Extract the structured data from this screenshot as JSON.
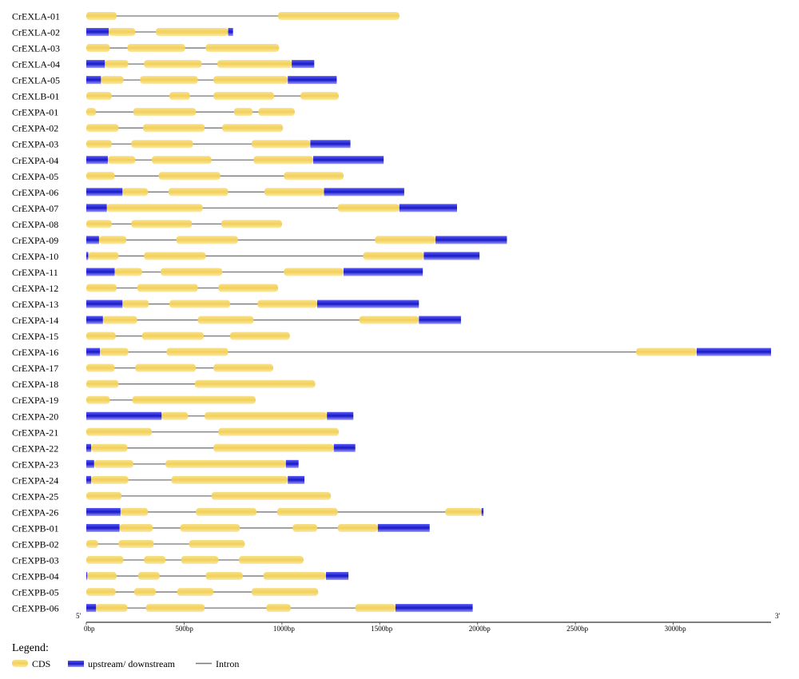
{
  "chart_data": {
    "type": "gene_structure",
    "x_unit": "bp",
    "x_range": [
      0,
      3500
    ],
    "x_ticks": [
      {
        "value": 0,
        "label": "0bp"
      },
      {
        "value": 500,
        "label": "500bp"
      },
      {
        "value": 1000,
        "label": "1000bp"
      },
      {
        "value": 1500,
        "label": "1500bp"
      },
      {
        "value": 2000,
        "label": "2000bp"
      },
      {
        "value": 2500,
        "label": "2500bp"
      },
      {
        "value": 3000,
        "label": "3000bp"
      }
    ],
    "five_prime_label": "5'",
    "three_prime_label": "3'",
    "colors": {
      "cds": "#f2d563",
      "utr": "#2a2ad6",
      "intron": "#777777"
    },
    "genes": [
      {
        "name": "CrEXLA-01",
        "length": 1600,
        "cds": [
          [
            0,
            155
          ],
          [
            980,
            1600
          ]
        ],
        "utr": []
      },
      {
        "name": "CrEXLA-02",
        "length": 750,
        "cds": [
          [
            115,
            250
          ],
          [
            355,
            725
          ]
        ],
        "utr": [
          [
            0,
            115
          ],
          [
            725,
            750
          ]
        ]
      },
      {
        "name": "CrEXLA-03",
        "length": 985,
        "cds": [
          [
            0,
            120
          ],
          [
            210,
            505
          ],
          [
            610,
            985
          ]
        ],
        "utr": []
      },
      {
        "name": "CrEXLA-04",
        "length": 1165,
        "cds": [
          [
            95,
            215
          ],
          [
            295,
            590
          ],
          [
            670,
            1050
          ]
        ],
        "utr": [
          [
            0,
            95
          ],
          [
            1050,
            1165
          ]
        ]
      },
      {
        "name": "CrEXLA-05",
        "length": 1280,
        "cds": [
          [
            75,
            190
          ],
          [
            275,
            570
          ],
          [
            650,
            1030
          ]
        ],
        "utr": [
          [
            0,
            75
          ],
          [
            1030,
            1280
          ]
        ]
      },
      {
        "name": "CrEXLB-01",
        "length": 1290,
        "cds": [
          [
            0,
            130
          ],
          [
            425,
            530
          ],
          [
            650,
            960
          ],
          [
            1095,
            1290
          ]
        ],
        "utr": []
      },
      {
        "name": "CrEXPA-01",
        "length": 1065,
        "cds": [
          [
            0,
            50
          ],
          [
            240,
            560
          ],
          [
            755,
            850
          ],
          [
            880,
            1065
          ]
        ],
        "utr": []
      },
      {
        "name": "CrEXPA-02",
        "length": 1005,
        "cds": [
          [
            0,
            165
          ],
          [
            290,
            605
          ],
          [
            695,
            1005
          ]
        ],
        "utr": []
      },
      {
        "name": "CrEXPA-03",
        "length": 1350,
        "cds": [
          [
            0,
            130
          ],
          [
            230,
            545
          ],
          [
            845,
            1145
          ]
        ],
        "utr": [
          [
            1145,
            1350
          ]
        ]
      },
      {
        "name": "CrEXPA-04",
        "length": 1520,
        "cds": [
          [
            110,
            250
          ],
          [
            335,
            640
          ],
          [
            855,
            1160
          ]
        ],
        "utr": [
          [
            0,
            110
          ],
          [
            1160,
            1520
          ]
        ]
      },
      {
        "name": "CrEXPA-05",
        "length": 1315,
        "cds": [
          [
            0,
            145
          ],
          [
            370,
            685
          ],
          [
            1010,
            1315
          ]
        ],
        "utr": []
      },
      {
        "name": "CrEXPA-06",
        "length": 1625,
        "cds": [
          [
            185,
            315
          ],
          [
            420,
            725
          ],
          [
            910,
            1215
          ]
        ],
        "utr": [
          [
            0,
            185
          ],
          [
            1215,
            1625
          ]
        ]
      },
      {
        "name": "CrEXPA-07",
        "length": 1895,
        "cds": [
          [
            105,
            595
          ],
          [
            1285,
            1600
          ]
        ],
        "utr": [
          [
            0,
            105
          ],
          [
            1600,
            1895
          ]
        ]
      },
      {
        "name": "CrEXPA-08",
        "length": 1000,
        "cds": [
          [
            0,
            130
          ],
          [
            230,
            540
          ],
          [
            690,
            1000
          ]
        ],
        "utr": []
      },
      {
        "name": "CrEXPA-09",
        "length": 2150,
        "cds": [
          [
            65,
            205
          ],
          [
            460,
            775
          ],
          [
            1475,
            1785
          ]
        ],
        "utr": [
          [
            0,
            65
          ],
          [
            1785,
            2150
          ]
        ]
      },
      {
        "name": "CrEXPA-10",
        "length": 2010,
        "cds": [
          [
            10,
            165
          ],
          [
            295,
            610
          ],
          [
            1415,
            1725
          ]
        ],
        "utr": [
          [
            0,
            10
          ],
          [
            1725,
            2010
          ]
        ]
      },
      {
        "name": "CrEXPA-11",
        "length": 1720,
        "cds": [
          [
            145,
            285
          ],
          [
            380,
            695
          ],
          [
            1010,
            1315
          ]
        ],
        "utr": [
          [
            0,
            145
          ],
          [
            1315,
            1720
          ]
        ]
      },
      {
        "name": "CrEXPA-12",
        "length": 980,
        "cds": [
          [
            0,
            155
          ],
          [
            260,
            570
          ],
          [
            675,
            980
          ]
        ],
        "utr": []
      },
      {
        "name": "CrEXPA-13",
        "length": 1700,
        "cds": [
          [
            185,
            320
          ],
          [
            425,
            735
          ],
          [
            875,
            1180
          ]
        ],
        "utr": [
          [
            0,
            185
          ],
          [
            1180,
            1700
          ]
        ]
      },
      {
        "name": "CrEXPA-14",
        "length": 1915,
        "cds": [
          [
            85,
            260
          ],
          [
            570,
            855
          ],
          [
            1395,
            1700
          ]
        ],
        "utr": [
          [
            0,
            85
          ],
          [
            1700,
            1915
          ]
        ]
      },
      {
        "name": "CrEXPA-15",
        "length": 1040,
        "cds": [
          [
            0,
            150
          ],
          [
            285,
            600
          ],
          [
            735,
            1040
          ]
        ],
        "utr": []
      },
      {
        "name": "CrEXPA-16",
        "length": 3500,
        "cds": [
          [
            70,
            215
          ],
          [
            410,
            725
          ],
          [
            2810,
            3120
          ]
        ],
        "utr": [
          [
            0,
            70
          ],
          [
            3120,
            3500
          ]
        ]
      },
      {
        "name": "CrEXPA-17",
        "length": 955,
        "cds": [
          [
            0,
            145
          ],
          [
            250,
            560
          ],
          [
            650,
            955
          ]
        ],
        "utr": []
      },
      {
        "name": "CrEXPA-18",
        "length": 1170,
        "cds": [
          [
            0,
            165
          ],
          [
            555,
            1170
          ]
        ],
        "utr": []
      },
      {
        "name": "CrEXPA-19",
        "length": 865,
        "cds": [
          [
            0,
            120
          ],
          [
            235,
            865
          ]
        ],
        "utr": []
      },
      {
        "name": "CrEXPA-20",
        "length": 1365,
        "cds": [
          [
            385,
            520
          ],
          [
            605,
            1230
          ]
        ],
        "utr": [
          [
            0,
            385
          ],
          [
            1230,
            1365
          ]
        ]
      },
      {
        "name": "CrEXPA-21",
        "length": 1290,
        "cds": [
          [
            0,
            335
          ],
          [
            675,
            1290
          ]
        ],
        "utr": []
      },
      {
        "name": "CrEXPA-22",
        "length": 1375,
        "cds": [
          [
            25,
            210
          ],
          [
            650,
            1265
          ]
        ],
        "utr": [
          [
            0,
            25
          ],
          [
            1265,
            1375
          ]
        ]
      },
      {
        "name": "CrEXPA-23",
        "length": 1085,
        "cds": [
          [
            40,
            240
          ],
          [
            405,
            1020
          ]
        ],
        "utr": [
          [
            0,
            40
          ],
          [
            1020,
            1085
          ]
        ]
      },
      {
        "name": "CrEXPA-24",
        "length": 1115,
        "cds": [
          [
            25,
            215
          ],
          [
            435,
            1030
          ]
        ],
        "utr": [
          [
            0,
            25
          ],
          [
            1030,
            1115
          ]
        ]
      },
      {
        "name": "CrEXPA-25",
        "length": 1250,
        "cds": [
          [
            0,
            180
          ],
          [
            640,
            1250
          ]
        ],
        "utr": []
      },
      {
        "name": "CrEXPA-26",
        "length": 2030,
        "cds": [
          [
            175,
            315
          ],
          [
            560,
            870
          ],
          [
            975,
            1285
          ],
          [
            1835,
            2020
          ]
        ],
        "utr": [
          [
            0,
            175
          ],
          [
            2020,
            2030
          ]
        ]
      },
      {
        "name": "CrEXPB-01",
        "length": 1755,
        "cds": [
          [
            170,
            340
          ],
          [
            480,
            785
          ],
          [
            1055,
            1180
          ],
          [
            1285,
            1490
          ]
        ],
        "utr": [
          [
            0,
            170
          ],
          [
            1490,
            1755
          ]
        ]
      },
      {
        "name": "CrEXPB-02",
        "length": 810,
        "cds": [
          [
            0,
            60
          ],
          [
            165,
            345
          ],
          [
            525,
            810
          ]
        ],
        "utr": []
      },
      {
        "name": "CrEXPB-03",
        "length": 1110,
        "cds": [
          [
            0,
            190
          ],
          [
            295,
            405
          ],
          [
            485,
            675
          ],
          [
            780,
            1110
          ]
        ],
        "utr": []
      },
      {
        "name": "CrEXPB-04",
        "length": 1340,
        "cds": [
          [
            5,
            155
          ],
          [
            265,
            375
          ],
          [
            610,
            800
          ],
          [
            905,
            1225
          ]
        ],
        "utr": [
          [
            0,
            5
          ],
          [
            1225,
            1340
          ]
        ]
      },
      {
        "name": "CrEXPB-05",
        "length": 1185,
        "cds": [
          [
            0,
            150
          ],
          [
            245,
            355
          ],
          [
            465,
            650
          ],
          [
            845,
            1185
          ]
        ],
        "utr": []
      },
      {
        "name": "CrEXPB-06",
        "length": 1975,
        "cds": [
          [
            50,
            210
          ],
          [
            305,
            605
          ],
          [
            920,
            1045
          ],
          [
            1375,
            1580
          ]
        ],
        "utr": [
          [
            0,
            50
          ],
          [
            1580,
            1975
          ]
        ]
      }
    ]
  },
  "legend": {
    "title": "Legend:",
    "items": [
      {
        "key": "cds",
        "label": "CDS"
      },
      {
        "key": "utr",
        "label": "upstream/ downstream"
      },
      {
        "key": "intron",
        "label": "Intron"
      }
    ]
  }
}
